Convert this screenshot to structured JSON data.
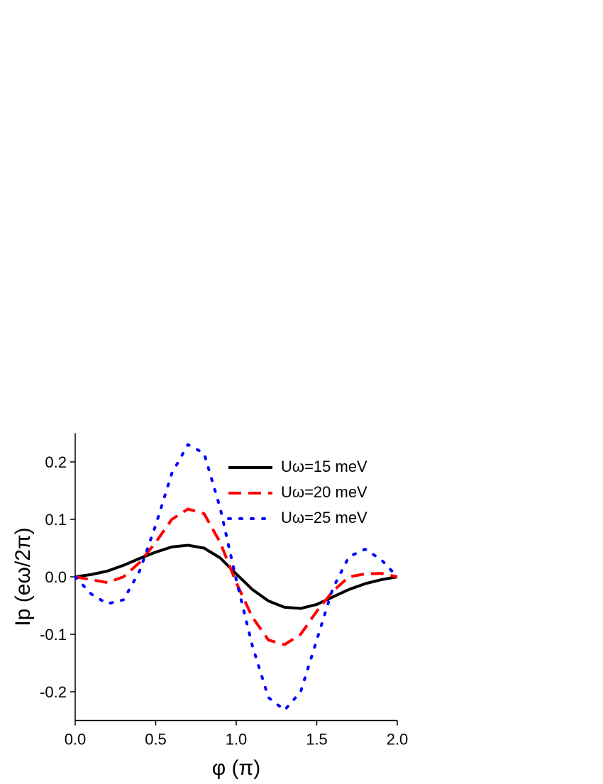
{
  "chart_data": {
    "type": "line",
    "xlabel": "φ (π)",
    "ylabel": "Ip (eω/2π)",
    "x": [
      0,
      0.1,
      0.2,
      0.3,
      0.4,
      0.5,
      0.6,
      0.7,
      0.8,
      0.9,
      1.0,
      1.1,
      1.2,
      1.3,
      1.4,
      1.5,
      1.6,
      1.7,
      1.8,
      1.9,
      2.0
    ],
    "series": [
      {
        "name": "Uω=15 meV",
        "color": "#000000",
        "dash": "solid",
        "values": [
          0,
          0.004,
          0.01,
          0.02,
          0.032,
          0.043,
          0.052,
          0.055,
          0.05,
          0.033,
          0.005,
          -0.022,
          -0.042,
          -0.053,
          -0.055,
          -0.048,
          -0.035,
          -0.022,
          -0.012,
          -0.005,
          0
        ]
      },
      {
        "name": "Uω=20 meV",
        "color": "#ff0000",
        "dash": "dashed",
        "values": [
          0,
          -0.005,
          -0.01,
          0.0,
          0.025,
          0.06,
          0.1,
          0.118,
          0.11,
          0.06,
          -0.01,
          -0.07,
          -0.11,
          -0.118,
          -0.1,
          -0.06,
          -0.025,
          0.0,
          0.005,
          0.006,
          0
        ]
      },
      {
        "name": "Uω=25 meV",
        "color": "#0000ff",
        "dash": "dotted",
        "values": [
          0,
          -0.03,
          -0.047,
          -0.04,
          0.01,
          0.09,
          0.18,
          0.23,
          0.215,
          0.12,
          -0.005,
          -0.12,
          -0.21,
          -0.232,
          -0.2,
          -0.11,
          -0.02,
          0.035,
          0.048,
          0.03,
          0
        ]
      }
    ],
    "xlim": [
      0,
      2
    ],
    "xticks": [
      {
        "value": 0,
        "label": "0.0"
      },
      0.5,
      {
        "value": 1,
        "label": "1.0"
      },
      1.5,
      {
        "value": 2,
        "label": "2.0"
      }
    ],
    "ylim": [
      -0.25,
      0.25
    ],
    "yticks": [
      -0.2,
      -0.1,
      {
        "value": 0,
        "label": "0.0"
      },
      0.1,
      0.2
    ],
    "legend": "upper right"
  }
}
